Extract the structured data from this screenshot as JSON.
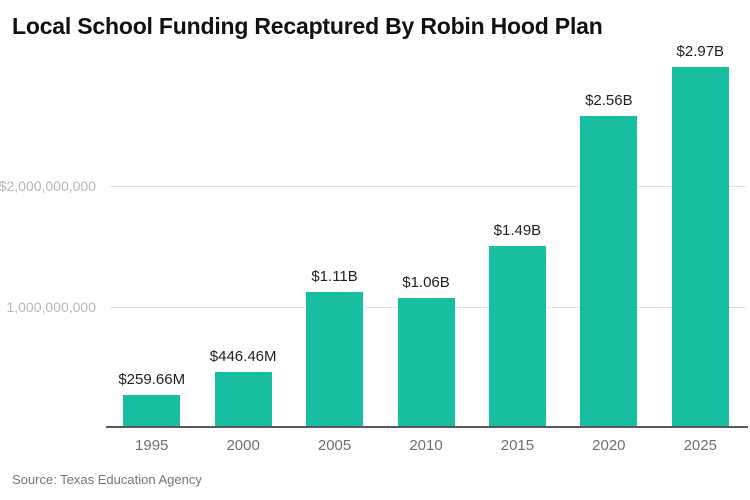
{
  "title": "Local School Funding Recaptured By Robin Hood Plan",
  "source": "Source: Texas Education Agency",
  "colors": {
    "bar": "#17be9f",
    "title": "#111111",
    "value_label": "#1f1f1f",
    "axis_line": "#58595b",
    "grid_line": "#e1e1e1",
    "y_tick_label": "#b2b7bc",
    "x_tick_label": "#6f6f6f",
    "source_text": "#757575"
  },
  "chart_data": {
    "type": "bar",
    "title": "Local School Funding Recaptured By Robin Hood Plan",
    "xlabel": "",
    "ylabel": "",
    "categories": [
      "1995",
      "2000",
      "2005",
      "2010",
      "2015",
      "2020",
      "2025"
    ],
    "values": [
      259660000,
      446460000,
      1110000000,
      1060000000,
      1490000000,
      2560000000,
      2970000000
    ],
    "value_labels": [
      "$259.66M",
      "$446.46M",
      "$1.11B",
      "$1.06B",
      "$1.49B",
      "$2.56B",
      "$2.97B"
    ],
    "yticks": [
      {
        "value": 2000000000,
        "label": "$2,000,000,000"
      },
      {
        "value": 1000000000,
        "label": "1,000,000,000"
      }
    ],
    "ylim": [
      0,
      3040000000
    ],
    "grid": "horizontal-only",
    "legend": "none",
    "source": "Source: Texas Education Agency"
  }
}
